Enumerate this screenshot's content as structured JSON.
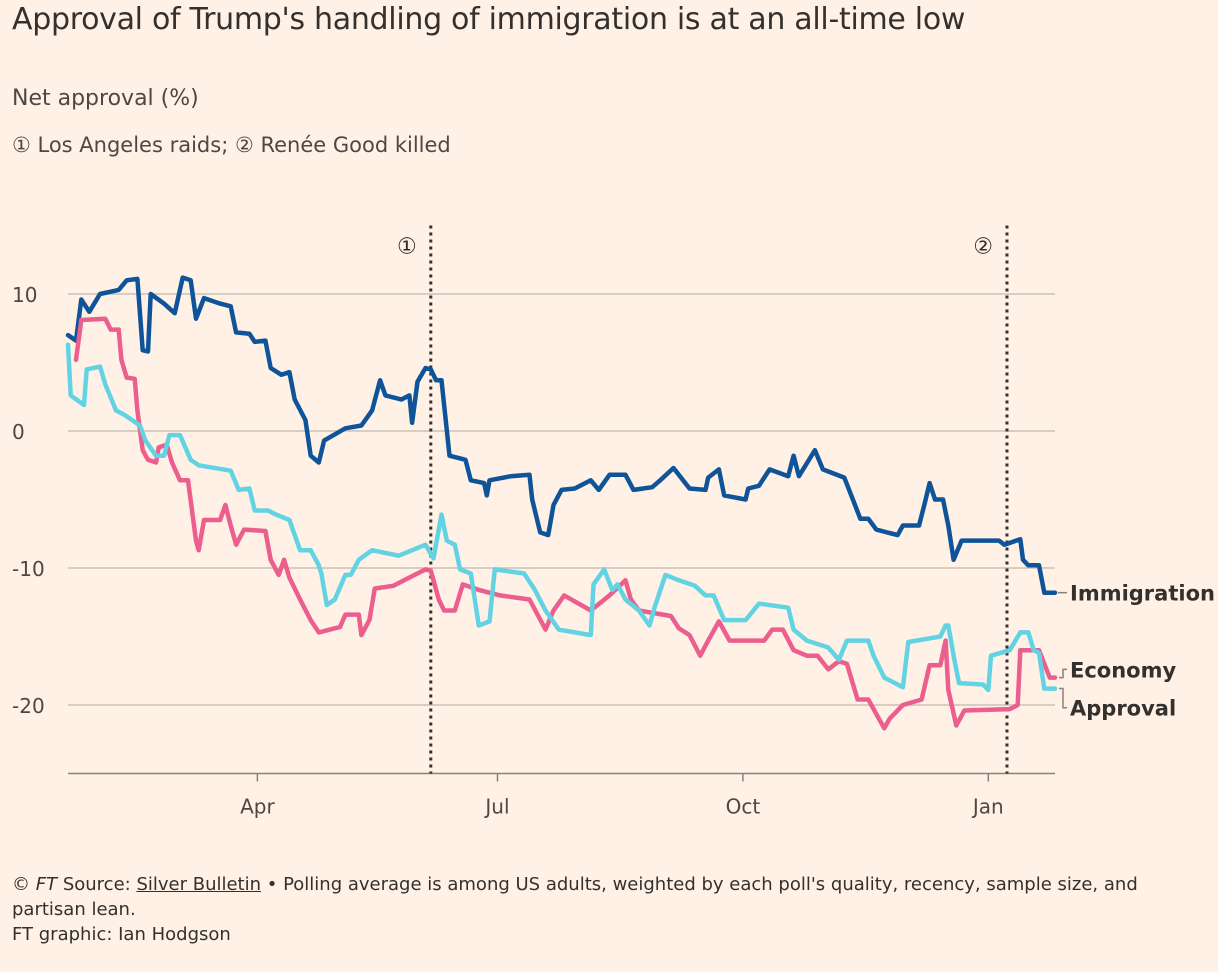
{
  "chart_data": {
    "type": "line",
    "title": "Approval of Trump's handling of immigration is at an all-time low",
    "subtitle": "Net approval (%)",
    "annotation_note": "① Los Angeles raids; ② Renée Good killed",
    "x_unit": "days since 2025-01-20",
    "xlim": [
      0,
      370
    ],
    "ylim": [
      -25,
      15
    ],
    "grid": true,
    "yticks": [
      {
        "value": 10,
        "label": "10"
      },
      {
        "value": 0,
        "label": "0"
      },
      {
        "value": -10,
        "label": "-10"
      },
      {
        "value": -20,
        "label": "-20"
      }
    ],
    "xticks": [
      {
        "value": 71,
        "label": "Apr"
      },
      {
        "value": 161,
        "label": "Jul"
      },
      {
        "value": 253,
        "label": "Oct"
      },
      {
        "value": 345,
        "label": "Jan"
      }
    ],
    "events": [
      {
        "value": 136,
        "label": "①"
      },
      {
        "value": 352,
        "label": "②"
      }
    ],
    "series": [
      {
        "name": "Immigration",
        "color": "#0f5499",
        "points": [
          [
            0,
            7.0
          ],
          [
            3,
            6.6
          ],
          [
            5,
            9.6
          ],
          [
            8,
            8.7
          ],
          [
            12,
            10
          ],
          [
            19,
            10.3
          ],
          [
            22,
            11
          ],
          [
            26,
            11.1
          ],
          [
            28,
            5.9
          ],
          [
            30,
            5.8
          ],
          [
            31,
            10
          ],
          [
            36,
            9.3
          ],
          [
            40,
            8.6
          ],
          [
            43,
            11.2
          ],
          [
            46,
            11.0
          ],
          [
            48,
            8.2
          ],
          [
            51,
            9.7
          ],
          [
            57,
            9.3
          ],
          [
            61,
            9.1
          ],
          [
            63,
            7.2
          ],
          [
            68,
            7.1
          ],
          [
            70,
            6.5
          ],
          [
            74,
            6.6
          ],
          [
            76,
            4.6
          ],
          [
            80,
            4.1
          ],
          [
            83,
            4.3
          ],
          [
            85,
            2.3
          ],
          [
            89,
            0.8
          ],
          [
            91,
            -1.8
          ],
          [
            94,
            -2.3
          ],
          [
            96,
            -0.7
          ],
          [
            104,
            0.2
          ],
          [
            110,
            0.4
          ],
          [
            114,
            1.5
          ],
          [
            117,
            3.7
          ],
          [
            119,
            2.6
          ],
          [
            125,
            2.3
          ],
          [
            128,
            2.6
          ],
          [
            129,
            0.6
          ],
          [
            131,
            3.6
          ],
          [
            134,
            4.6
          ],
          [
            136,
            4.5
          ],
          [
            138,
            3.7
          ],
          [
            140,
            3.7
          ],
          [
            143,
            -1.8
          ],
          [
            149,
            -2.1
          ],
          [
            151,
            -3.6
          ],
          [
            156,
            -3.8
          ],
          [
            157,
            -4.7
          ],
          [
            158,
            -3.6
          ],
          [
            166,
            -3.3
          ],
          [
            173,
            -3.2
          ],
          [
            174,
            -5
          ],
          [
            177,
            -7.4
          ],
          [
            180,
            -7.6
          ],
          [
            182,
            -5.4
          ],
          [
            185,
            -4.3
          ],
          [
            190,
            -4.2
          ],
          [
            196,
            -3.6
          ],
          [
            199,
            -4.3
          ],
          [
            203,
            -3.2
          ],
          [
            209,
            -3.2
          ],
          [
            212,
            -4.3
          ],
          [
            219,
            -4.1
          ],
          [
            222,
            -3.6
          ],
          [
            227,
            -2.7
          ],
          [
            233,
            -4.2
          ],
          [
            239,
            -4.3
          ],
          [
            240,
            -3.4
          ],
          [
            244,
            -2.8
          ],
          [
            246,
            -4.7
          ],
          [
            254,
            -5
          ],
          [
            255,
            -4.2
          ],
          [
            259,
            -4
          ],
          [
            263,
            -2.8
          ],
          [
            270,
            -3.3
          ],
          [
            272,
            -1.8
          ],
          [
            274,
            -3.3
          ],
          [
            280,
            -1.4
          ],
          [
            283,
            -2.8
          ],
          [
            291,
            -3.4
          ],
          [
            294,
            -4.9
          ],
          [
            297,
            -6.4
          ],
          [
            300,
            -6.4
          ],
          [
            303,
            -7.2
          ],
          [
            311,
            -7.6
          ],
          [
            313,
            -6.9
          ],
          [
            319,
            -6.9
          ],
          [
            321,
            -5.4
          ],
          [
            323,
            -3.8
          ],
          [
            325,
            -5
          ],
          [
            328,
            -5
          ],
          [
            330,
            -6.9
          ],
          [
            332,
            -9.4
          ],
          [
            335,
            -8
          ],
          [
            349,
            -8
          ],
          [
            351,
            -8.3
          ],
          [
            357,
            -7.9
          ],
          [
            358,
            -9.4
          ],
          [
            360,
            -9.8
          ],
          [
            364,
            -9.8
          ],
          [
            366,
            -11.8
          ],
          [
            370,
            -11.8
          ]
        ]
      },
      {
        "name": "Economy",
        "color": "#eb5e8d",
        "points": [
          [
            3,
            5.2
          ],
          [
            5,
            8.1
          ],
          [
            14,
            8.2
          ],
          [
            16,
            7.4
          ],
          [
            19,
            7.4
          ],
          [
            20,
            5.2
          ],
          [
            22,
            3.9
          ],
          [
            25,
            3.8
          ],
          [
            26,
            1.5
          ],
          [
            28,
            -1.4
          ],
          [
            30,
            -2.1
          ],
          [
            33,
            -2.3
          ],
          [
            34,
            -1.2
          ],
          [
            37,
            -1.0
          ],
          [
            39,
            -2.3
          ],
          [
            42,
            -3.6
          ],
          [
            45,
            -3.6
          ],
          [
            48,
            -8
          ],
          [
            49,
            -8.7
          ],
          [
            51,
            -6.5
          ],
          [
            57,
            -6.5
          ],
          [
            59,
            -5.4
          ],
          [
            61,
            -6.9
          ],
          [
            63,
            -8.3
          ],
          [
            66,
            -7.2
          ],
          [
            74,
            -7.3
          ],
          [
            76,
            -9.4
          ],
          [
            79,
            -10.5
          ],
          [
            81,
            -9.4
          ],
          [
            83,
            -10.7
          ],
          [
            87,
            -12.3
          ],
          [
            91,
            -13.8
          ],
          [
            94,
            -14.7
          ],
          [
            102,
            -14.3
          ],
          [
            104,
            -13.4
          ],
          [
            109,
            -13.4
          ],
          [
            110,
            -14.9
          ],
          [
            113,
            -13.8
          ],
          [
            115,
            -11.5
          ],
          [
            122,
            -11.3
          ],
          [
            126,
            -10.9
          ],
          [
            134,
            -10.1
          ],
          [
            136,
            -10.2
          ],
          [
            139,
            -12.3
          ],
          [
            141,
            -13.1
          ],
          [
            145,
            -13.1
          ],
          [
            148,
            -11.2
          ],
          [
            154,
            -11.6
          ],
          [
            162,
            -12
          ],
          [
            173,
            -12.3
          ],
          [
            179,
            -14.5
          ],
          [
            182,
            -13.1
          ],
          [
            186,
            -12
          ],
          [
            196,
            -13.1
          ],
          [
            203,
            -12
          ],
          [
            209,
            -10.9
          ],
          [
            211,
            -12.3
          ],
          [
            214,
            -13.1
          ],
          [
            226,
            -13.5
          ],
          [
            229,
            -14.4
          ],
          [
            233,
            -14.9
          ],
          [
            237,
            -16.4
          ],
          [
            240,
            -15.3
          ],
          [
            244,
            -13.9
          ],
          [
            248,
            -15.3
          ],
          [
            261,
            -15.3
          ],
          [
            264,
            -14.5
          ],
          [
            268,
            -14.5
          ],
          [
            272,
            -16
          ],
          [
            277,
            -16.4
          ],
          [
            281,
            -16.4
          ],
          [
            285,
            -17.4
          ],
          [
            289,
            -16.8
          ],
          [
            292,
            -17.0
          ],
          [
            296,
            -19.6
          ],
          [
            300,
            -19.6
          ],
          [
            304,
            -21
          ],
          [
            306,
            -21.7
          ],
          [
            308,
            -21
          ],
          [
            313,
            -20
          ],
          [
            320,
            -19.6
          ],
          [
            323,
            -17.1
          ],
          [
            327,
            -17.1
          ],
          [
            329,
            -15.3
          ],
          [
            330,
            -18.9
          ],
          [
            333,
            -21.5
          ],
          [
            336,
            -20.4
          ],
          [
            353,
            -20.3
          ],
          [
            356,
            -20
          ],
          [
            357,
            -16
          ],
          [
            364,
            -16
          ],
          [
            368,
            -18
          ],
          [
            370,
            -18
          ]
        ]
      },
      {
        "name": "Approval",
        "color": "#62d3e3",
        "points": [
          [
            0,
            6.3
          ],
          [
            1,
            2.6
          ],
          [
            6,
            1.9
          ],
          [
            7,
            4.5
          ],
          [
            12,
            4.7
          ],
          [
            14,
            3.4
          ],
          [
            18,
            1.5
          ],
          [
            21,
            1.2
          ],
          [
            27,
            0.4
          ],
          [
            29,
            -0.7
          ],
          [
            33,
            -1.8
          ],
          [
            36,
            -1.8
          ],
          [
            38,
            -0.3
          ],
          [
            42,
            -0.3
          ],
          [
            46,
            -2.1
          ],
          [
            49,
            -2.5
          ],
          [
            61,
            -2.9
          ],
          [
            64,
            -4.3
          ],
          [
            68,
            -4.2
          ],
          [
            70,
            -5.8
          ],
          [
            75,
            -5.8
          ],
          [
            78,
            -6.1
          ],
          [
            83,
            -6.5
          ],
          [
            87,
            -8.7
          ],
          [
            91,
            -8.7
          ],
          [
            94,
            -9.8
          ],
          [
            95,
            -10.4
          ],
          [
            97,
            -12.7
          ],
          [
            100,
            -12.3
          ],
          [
            104,
            -10.5
          ],
          [
            106,
            -10.5
          ],
          [
            109,
            -9.4
          ],
          [
            114,
            -8.7
          ],
          [
            124,
            -9.1
          ],
          [
            134,
            -8.3
          ],
          [
            137,
            -9.3
          ],
          [
            140,
            -6.1
          ],
          [
            142,
            -8.0
          ],
          [
            145,
            -8.3
          ],
          [
            147,
            -10.1
          ],
          [
            151,
            -10.4
          ],
          [
            154,
            -14.2
          ],
          [
            158,
            -13.9
          ],
          [
            160,
            -10.1
          ],
          [
            171,
            -10.4
          ],
          [
            175,
            -11.6
          ],
          [
            179,
            -13.1
          ],
          [
            184,
            -14.5
          ],
          [
            196,
            -14.9
          ],
          [
            197,
            -11.2
          ],
          [
            201,
            -10.1
          ],
          [
            204,
            -11.6
          ],
          [
            206,
            -11.2
          ],
          [
            209,
            -12.3
          ],
          [
            214,
            -13.1
          ],
          [
            218,
            -14.2
          ],
          [
            220,
            -12.8
          ],
          [
            224,
            -10.5
          ],
          [
            229,
            -10.9
          ],
          [
            235,
            -11.3
          ],
          [
            239,
            -12
          ],
          [
            242,
            -12
          ],
          [
            246,
            -13.8
          ],
          [
            254,
            -13.8
          ],
          [
            259,
            -12.6
          ],
          [
            270,
            -12.9
          ],
          [
            272,
            -14.5
          ],
          [
            277,
            -15.3
          ],
          [
            285,
            -15.8
          ],
          [
            289,
            -16.7
          ],
          [
            292,
            -15.3
          ],
          [
            300,
            -15.3
          ],
          [
            302,
            -16.4
          ],
          [
            306,
            -18
          ],
          [
            313,
            -18.7
          ],
          [
            315,
            -15.4
          ],
          [
            327,
            -15.0
          ],
          [
            329,
            -14.2
          ],
          [
            330,
            -14.2
          ],
          [
            332,
            -16.4
          ],
          [
            334,
            -18.4
          ],
          [
            343,
            -18.5
          ],
          [
            345,
            -18.9
          ],
          [
            346,
            -16.4
          ],
          [
            353,
            -16.0
          ],
          [
            357,
            -14.7
          ],
          [
            360,
            -14.7
          ],
          [
            362,
            -16.0
          ],
          [
            364,
            -16.2
          ],
          [
            366,
            -18.8
          ],
          [
            370,
            -18.8
          ]
        ]
      }
    ]
  },
  "footer": {
    "copyright": "© ",
    "ft": "FT",
    "source_prefix": " Source: ",
    "source_link": "Silver Bulletin",
    "note": " • Polling average is among US adults, weighted by each poll's quality, recency, sample size, and partisan lean.",
    "credit": "FT graphic: Ian Hodgson"
  },
  "colors": {
    "background": "#fff1e5",
    "grid": "#ccc1b7",
    "text": "#33302e"
  }
}
